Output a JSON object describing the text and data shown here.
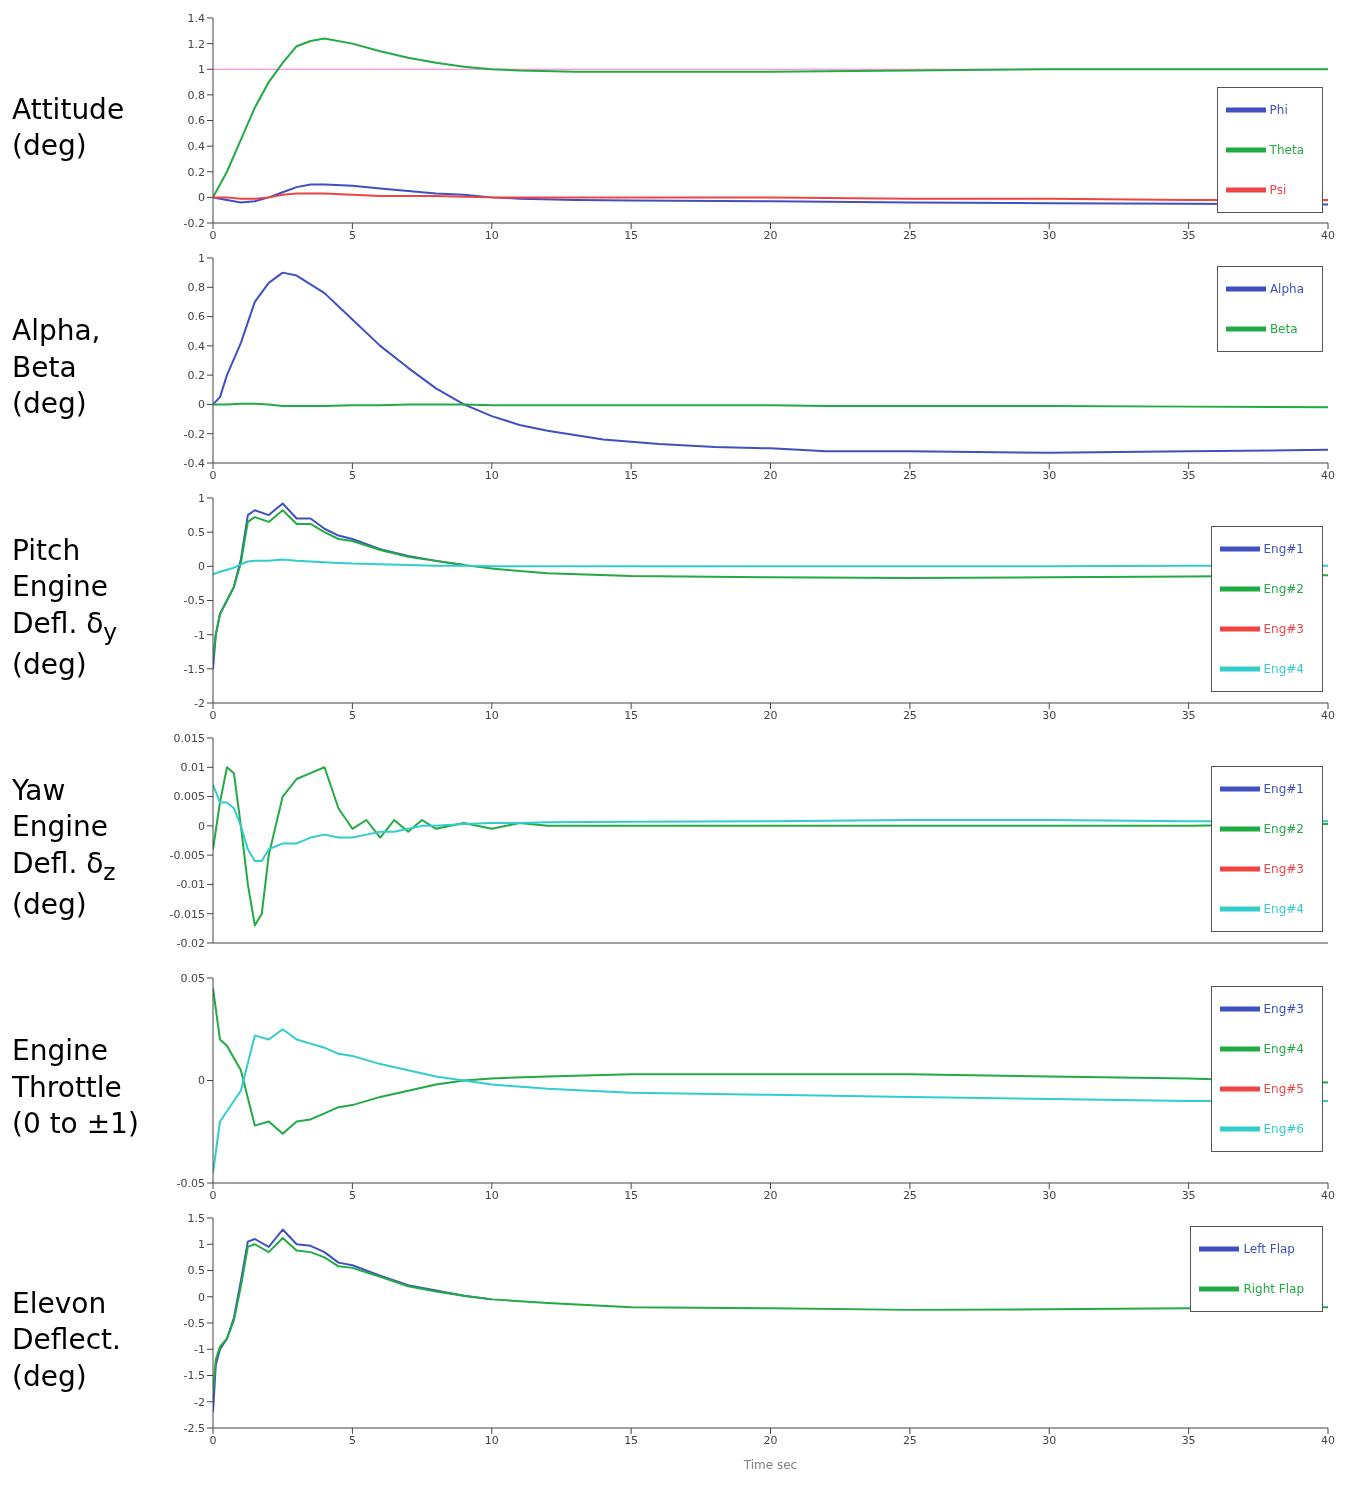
{
  "chart_data": [
    {
      "type": "line",
      "ylabel": "Attitude (deg)",
      "x": [
        0,
        0.5,
        1,
        1.5,
        2,
        2.5,
        3,
        3.5,
        4,
        5,
        6,
        7,
        8,
        9,
        10,
        11,
        13,
        15,
        20,
        25,
        30,
        35,
        40
      ],
      "xlim": [
        0,
        40
      ],
      "xticks": [
        0,
        5,
        10,
        15,
        20,
        25,
        30,
        35,
        40
      ],
      "ylim": [
        -0.2,
        1.4
      ],
      "yticks": [
        -0.2,
        0,
        0.2,
        0.4,
        0.6,
        0.8,
        1,
        1.2,
        1.4
      ],
      "legend": "right",
      "ref_lines": [
        {
          "axis": "y",
          "value": 1,
          "color": "#ff77cc"
        }
      ],
      "series": [
        {
          "name": "Phi",
          "color": "#4050c0",
          "values": [
            0,
            -0.02,
            -0.04,
            -0.03,
            0,
            0.04,
            0.08,
            0.1,
            0.1,
            0.09,
            0.07,
            0.05,
            0.03,
            0.02,
            0,
            -0.01,
            -0.02,
            -0.025,
            -0.03,
            -0.04,
            -0.045,
            -0.05,
            -0.055
          ]
        },
        {
          "name": "Theta",
          "color": "#22aa44",
          "values": [
            0,
            0.2,
            0.45,
            0.7,
            0.9,
            1.05,
            1.18,
            1.22,
            1.24,
            1.2,
            1.14,
            1.09,
            1.05,
            1.02,
            1,
            0.99,
            0.98,
            0.98,
            0.98,
            0.99,
            1,
            1,
            1
          ]
        },
        {
          "name": "Psi",
          "color": "#ee4444",
          "values": [
            0,
            0,
            -0.01,
            -0.01,
            0,
            0.02,
            0.03,
            0.03,
            0.03,
            0.02,
            0.01,
            0.01,
            0.01,
            0.005,
            0,
            0,
            0,
            0,
            0,
            -0.01,
            -0.01,
            -0.02,
            -0.02
          ]
        }
      ]
    },
    {
      "type": "line",
      "ylabel": "Alpha, Beta (deg)",
      "x": [
        0,
        0.25,
        0.5,
        1,
        1.5,
        2,
        2.5,
        3,
        4,
        5,
        6,
        7,
        8,
        9,
        10,
        11,
        12,
        14,
        16,
        18,
        20,
        22,
        25,
        30,
        35,
        40
      ],
      "xlim": [
        0,
        40
      ],
      "xticks": [
        0,
        5,
        10,
        15,
        20,
        25,
        30,
        35,
        40
      ],
      "ylim": [
        -0.4,
        1
      ],
      "yticks": [
        -0.4,
        -0.2,
        0,
        0.2,
        0.4,
        0.6,
        0.8,
        1
      ],
      "legend": "top right",
      "series": [
        {
          "name": "Alpha",
          "color": "#4050c0",
          "values": [
            0,
            0.05,
            0.2,
            0.42,
            0.7,
            0.83,
            0.9,
            0.88,
            0.76,
            0.58,
            0.4,
            0.25,
            0.11,
            0,
            -0.08,
            -0.14,
            -0.18,
            -0.24,
            -0.27,
            -0.29,
            -0.3,
            -0.32,
            -0.32,
            -0.33,
            -0.32,
            -0.31
          ]
        },
        {
          "name": "Beta",
          "color": "#22aa44",
          "values": [
            0,
            0,
            0,
            0.005,
            0.005,
            0,
            -0.01,
            -0.01,
            -0.01,
            -0.005,
            -0.005,
            0,
            0,
            0,
            -0.005,
            -0.005,
            -0.005,
            -0.005,
            -0.005,
            -0.005,
            -0.005,
            -0.01,
            -0.01,
            -0.01,
            -0.015,
            -0.02
          ]
        }
      ]
    },
    {
      "type": "line",
      "ylabel": "Pitch Engine Defl. δ$_{y}$ (deg)",
      "x": [
        0,
        0.1,
        0.25,
        0.5,
        0.75,
        1,
        1.25,
        1.5,
        2,
        2.5,
        3,
        3.5,
        4,
        4.5,
        5,
        6,
        7,
        8,
        9,
        10,
        11,
        12,
        15,
        20,
        25,
        30,
        35,
        40
      ],
      "xlim": [
        0,
        40
      ],
      "xticks": [
        0,
        5,
        10,
        15,
        20,
        25,
        30,
        35,
        40
      ],
      "ylim": [
        -2,
        1
      ],
      "yticks": [
        -2,
        -1.5,
        -1,
        -0.5,
        0,
        0.5,
        1
      ],
      "legend": "bottom right",
      "series": [
        {
          "name": "Eng#1",
          "color": "#4050c0",
          "values": [
            -1.5,
            -1,
            -0.7,
            -0.5,
            -0.3,
            0.1,
            0.75,
            0.82,
            0.75,
            0.92,
            0.7,
            0.7,
            0.55,
            0.45,
            0.4,
            0.25,
            0.15,
            0.08,
            0.02,
            null,
            null,
            null,
            null,
            null,
            null,
            null,
            null,
            null
          ]
        },
        {
          "name": "Eng#2",
          "color": "#22aa44",
          "values": [
            -1.35,
            -1,
            -0.7,
            -0.5,
            -0.3,
            0.05,
            0.65,
            0.72,
            0.65,
            0.82,
            0.62,
            0.62,
            0.5,
            0.4,
            0.37,
            0.24,
            0.14,
            0.08,
            0.02,
            -0.03,
            -0.07,
            -0.1,
            -0.14,
            -0.16,
            -0.17,
            -0.16,
            -0.15,
            -0.13
          ]
        },
        {
          "name": "Eng#3",
          "color": "#ee4444",
          "values": [
            null,
            null,
            null,
            null,
            null,
            null,
            null,
            null,
            null,
            null,
            null,
            null,
            null,
            null,
            null,
            null,
            null,
            null,
            null,
            null,
            null,
            null,
            null,
            null,
            null,
            null,
            null,
            null
          ]
        },
        {
          "name": "Eng#4",
          "color": "#33cccc",
          "values": [
            -0.12,
            -0.1,
            -0.08,
            -0.05,
            -0.02,
            0.03,
            0.07,
            0.08,
            0.08,
            0.1,
            0.08,
            0.07,
            0.06,
            0.05,
            0.04,
            0.03,
            0.02,
            0.01,
            0.01,
            0,
            0,
            0,
            0,
            0,
            0,
            0,
            0.01,
            0.01
          ]
        }
      ]
    },
    {
      "type": "line",
      "ylabel": "Yaw Engine Defl. δ$_{z}$ (deg)",
      "x": [
        0,
        0.25,
        0.5,
        0.75,
        1,
        1.25,
        1.5,
        1.75,
        2,
        2.5,
        3,
        3.5,
        4,
        4.5,
        5,
        5.5,
        6,
        6.5,
        7,
        7.5,
        8,
        9,
        10,
        11,
        12,
        15,
        20,
        25,
        30,
        35,
        40
      ],
      "xlim": [
        0,
        40
      ],
      "xticks": [
        0,
        5,
        10,
        15,
        20,
        25,
        30,
        35,
        40
      ],
      "ylim": [
        -0.02,
        0.015
      ],
      "yticks": [
        -0.02,
        -0.015,
        -0.01,
        -0.005,
        0,
        0.005,
        0.01,
        0.015
      ],
      "tick_labels": "y",
      "legend": "bottom right",
      "series": [
        {
          "name": "Eng#1",
          "color": "#4050c0",
          "values": [
            null,
            null,
            null,
            null,
            null,
            null,
            null,
            null,
            null,
            null,
            null,
            null,
            null,
            null,
            null,
            null,
            null,
            null,
            null,
            null,
            null,
            null,
            null,
            null,
            null,
            null,
            null,
            null,
            null,
            null,
            null
          ]
        },
        {
          "name": "Eng#2",
          "color": "#22aa44",
          "values": [
            -0.004,
            0.004,
            0.01,
            0.009,
            0,
            -0.01,
            -0.017,
            -0.015,
            -0.005,
            0.005,
            0.008,
            0.009,
            0.01,
            0.003,
            -0.0005,
            0.001,
            -0.002,
            0.001,
            -0.001,
            0.001,
            -0.0005,
            0.0005,
            -0.0005,
            0.0005,
            0,
            0,
            0,
            0,
            0,
            0,
            0.0003
          ]
        },
        {
          "name": "Eng#3",
          "color": "#ee4444",
          "values": [
            null,
            null,
            null,
            null,
            null,
            null,
            null,
            null,
            null,
            null,
            null,
            null,
            null,
            null,
            null,
            null,
            null,
            null,
            null,
            null,
            null,
            null,
            null,
            null,
            null,
            null,
            null,
            null,
            null,
            null,
            null
          ]
        },
        {
          "name": "Eng#4",
          "color": "#33cccc",
          "values": [
            0.007,
            0.004,
            0.004,
            0.003,
            0,
            -0.004,
            -0.006,
            -0.006,
            -0.004,
            -0.003,
            -0.003,
            -0.002,
            -0.0015,
            -0.002,
            -0.002,
            -0.0015,
            -0.001,
            -0.001,
            -0.0005,
            0,
            0,
            0.0003,
            0.0005,
            0.0005,
            0.0006,
            0.0007,
            0.0008,
            0.001,
            0.001,
            0.0008,
            0.0008
          ]
        }
      ]
    },
    {
      "type": "line",
      "ylabel": "Engine Throttle (0 to ±1)",
      "x": [
        0,
        0.1,
        0.25,
        0.5,
        1,
        1.5,
        2,
        2.5,
        3,
        3.5,
        4,
        4.5,
        5,
        6,
        7,
        8,
        9,
        10,
        12,
        15,
        20,
        25,
        30,
        35,
        40
      ],
      "xlim": [
        0,
        40
      ],
      "xticks": [
        0,
        5,
        10,
        15,
        20,
        25,
        30,
        35,
        40
      ],
      "ylim": [
        -0.05,
        0.05
      ],
      "yticks": [
        -0.05,
        0,
        0.05
      ],
      "legend": "top right",
      "series": [
        {
          "name": "Eng#3",
          "color": "#4050c0",
          "values": [
            null,
            null,
            null,
            null,
            null,
            null,
            null,
            null,
            null,
            null,
            null,
            null,
            null,
            null,
            null,
            null,
            null,
            null,
            null,
            null,
            null,
            null,
            null,
            null,
            null
          ]
        },
        {
          "name": "Eng#4",
          "color": "#22aa44",
          "values": [
            0.045,
            0.035,
            0.02,
            0.017,
            0.005,
            -0.022,
            -0.02,
            -0.026,
            -0.02,
            -0.019,
            -0.016,
            -0.013,
            -0.012,
            -0.008,
            -0.005,
            -0.002,
            0,
            0.001,
            0.002,
            0.003,
            0.003,
            0.003,
            0.002,
            0.001,
            -0.001
          ]
        },
        {
          "name": "Eng#5",
          "color": "#ee4444",
          "values": [
            null,
            null,
            null,
            null,
            null,
            null,
            null,
            null,
            null,
            null,
            null,
            null,
            null,
            null,
            null,
            null,
            null,
            null,
            null,
            null,
            null,
            null,
            null,
            null,
            null
          ]
        },
        {
          "name": "Eng#6",
          "color": "#33cccc",
          "values": [
            -0.045,
            -0.035,
            -0.02,
            -0.015,
            -0.005,
            0.022,
            0.02,
            0.025,
            0.02,
            0.018,
            0.016,
            0.013,
            0.012,
            0.008,
            0.005,
            0.002,
            0,
            -0.002,
            -0.004,
            -0.006,
            -0.007,
            -0.008,
            -0.009,
            -0.01,
            -0.01
          ]
        }
      ]
    },
    {
      "type": "line",
      "ylabel": "Elevon Deflect. (deg)",
      "xlabel": "Time sec",
      "x": [
        0,
        0.1,
        0.25,
        0.5,
        0.75,
        1,
        1.25,
        1.5,
        2,
        2.5,
        3,
        3.5,
        4,
        4.5,
        5,
        6,
        7,
        8,
        9,
        10,
        12,
        15,
        20,
        25,
        30,
        35,
        40
      ],
      "xlim": [
        0,
        40
      ],
      "xticks": [
        0,
        5,
        10,
        15,
        20,
        25,
        30,
        35,
        40
      ],
      "ylim": [
        -2.5,
        1.5
      ],
      "yticks": [
        -2.5,
        -2,
        -1.5,
        -1,
        -0.5,
        0,
        0.5,
        1,
        1.5
      ],
      "legend": "top right",
      "series": [
        {
          "name": "Left Flap",
          "color": "#4050c0",
          "values": [
            -2.2,
            -1.3,
            -1,
            -0.8,
            -0.4,
            0.3,
            1.05,
            1.1,
            0.95,
            1.28,
            1,
            0.97,
            0.85,
            0.65,
            0.6,
            0.4,
            0.22,
            0.12,
            0.02,
            -0.05,
            null,
            null,
            null,
            null,
            null,
            null,
            null
          ]
        },
        {
          "name": "Right Flap",
          "color": "#22aa44",
          "values": [
            -1.8,
            -1.2,
            -0.95,
            -0.8,
            -0.45,
            0.2,
            0.95,
            1,
            0.85,
            1.12,
            0.88,
            0.85,
            0.75,
            0.58,
            0.55,
            0.38,
            0.2,
            0.1,
            0.02,
            -0.05,
            -0.12,
            -0.2,
            -0.22,
            -0.25,
            -0.24,
            -0.22,
            -0.2
          ]
        }
      ]
    }
  ]
}
